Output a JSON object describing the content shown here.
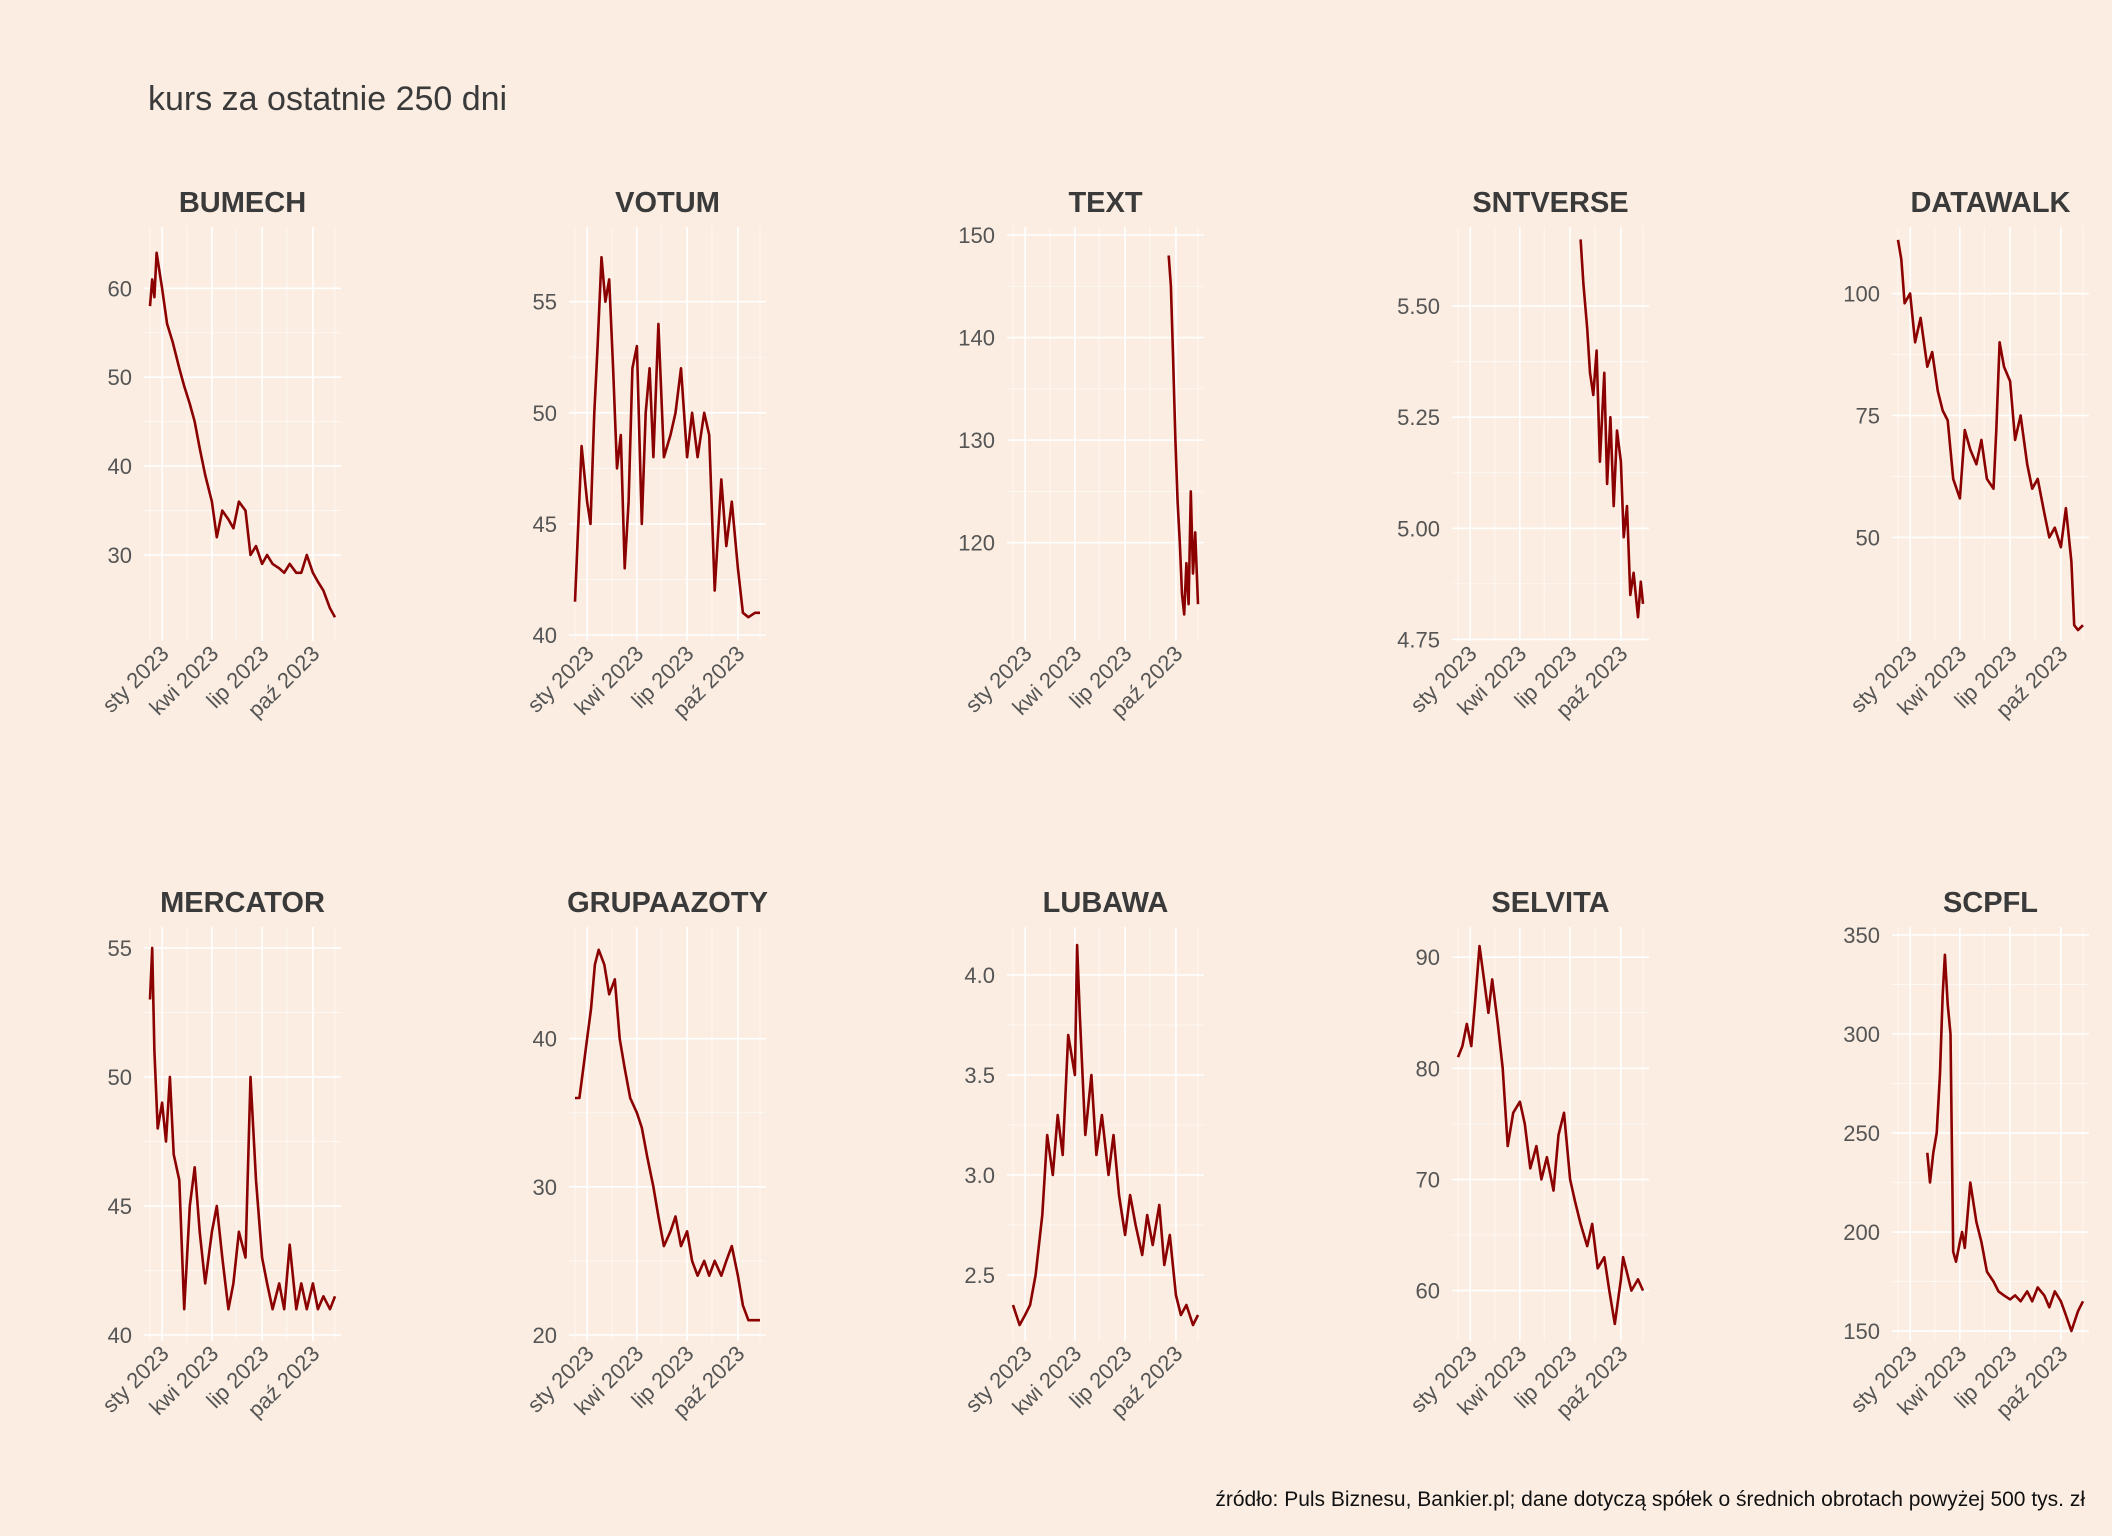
{
  "title": "kurs za ostatnie 250 dni",
  "caption": "źródło: Puls Biznesu, Bankier.pl; dane dotyczą spółek o średnich obrotach powyżej 500 tys. zł",
  "colors": {
    "background": "#fbede1",
    "line": "#8b0000",
    "grid": "#ffffff"
  },
  "chart_data": [
    {
      "type": "line",
      "title": "BUMECH",
      "x_ticks": [
        "sty 2023",
        "kwi 2023",
        "lip 2023",
        "paź 2023"
      ],
      "y_ticks": [
        "30",
        "40",
        "50",
        "60"
      ],
      "y_tick_values": [
        30,
        40,
        50,
        60
      ],
      "ylim": [
        21,
        66
      ],
      "x": [
        "2022-12-10",
        "2022-12-14",
        "2022-12-18",
        "2022-12-22",
        "2023-01-01",
        "2023-01-10",
        "2023-01-20",
        "2023-02-01",
        "2023-02-10",
        "2023-02-20",
        "2023-03-01",
        "2023-03-10",
        "2023-03-20",
        "2023-04-01",
        "2023-04-10",
        "2023-04-20",
        "2023-05-01",
        "2023-05-10",
        "2023-05-20",
        "2023-06-01",
        "2023-06-10",
        "2023-06-20",
        "2023-07-01",
        "2023-07-10",
        "2023-07-20",
        "2023-08-01",
        "2023-08-10",
        "2023-08-20",
        "2023-09-01",
        "2023-09-10",
        "2023-09-20",
        "2023-10-01",
        "2023-10-10",
        "2023-10-20",
        "2023-11-01",
        "2023-11-10"
      ],
      "y": [
        58,
        61,
        59,
        64,
        60,
        56,
        54,
        51,
        49,
        47,
        45,
        42,
        39,
        36,
        32,
        35,
        34,
        33,
        36,
        35,
        30,
        31,
        29,
        30,
        29,
        28.5,
        28,
        29,
        28,
        28,
        30,
        28,
        27,
        26,
        24,
        23
      ]
    },
    {
      "type": "line",
      "title": "VOTUM",
      "x_ticks": [
        "sty 2023",
        "kwi 2023",
        "lip 2023",
        "paź 2023"
      ],
      "y_ticks": [
        "40",
        "45",
        "50",
        "55"
      ],
      "y_tick_values": [
        40,
        45,
        50,
        55
      ],
      "ylim": [
        40,
        58
      ],
      "x": [
        "2022-12-10",
        "2022-12-16",
        "2022-12-22",
        "2023-01-01",
        "2023-01-07",
        "2023-01-14",
        "2023-01-20",
        "2023-01-27",
        "2023-02-03",
        "2023-02-10",
        "2023-02-17",
        "2023-02-24",
        "2023-03-03",
        "2023-03-10",
        "2023-03-17",
        "2023-03-24",
        "2023-04-01",
        "2023-04-10",
        "2023-04-17",
        "2023-04-24",
        "2023-05-01",
        "2023-05-10",
        "2023-05-20",
        "2023-06-01",
        "2023-06-10",
        "2023-06-20",
        "2023-07-01",
        "2023-07-10",
        "2023-07-20",
        "2023-08-01",
        "2023-08-10",
        "2023-08-20",
        "2023-09-01",
        "2023-09-10",
        "2023-09-20",
        "2023-10-01",
        "2023-10-10",
        "2023-10-20",
        "2023-11-01",
        "2023-11-10"
      ],
      "y": [
        41.5,
        45,
        48.5,
        46,
        45,
        50,
        53,
        57,
        55,
        56,
        52,
        47.5,
        49,
        43,
        46,
        52,
        53,
        45,
        50,
        52,
        48,
        54,
        48,
        49,
        50,
        52,
        48,
        50,
        48,
        50,
        49,
        42,
        47,
        44,
        46,
        43,
        41,
        40.8,
        41,
        41
      ]
    },
    {
      "type": "line",
      "title": "TEXT",
      "x_ticks": [
        "sty 2023",
        "kwi 2023",
        "lip 2023",
        "paź 2023"
      ],
      "y_ticks": [
        "120",
        "130",
        "140",
        "150"
      ],
      "y_tick_values": [
        120,
        130,
        140,
        150
      ],
      "ylim": [
        111,
        150
      ],
      "x": [
        "2023-09-18",
        "2023-09-22",
        "2023-09-26",
        "2023-09-30",
        "2023-10-04",
        "2023-10-08",
        "2023-10-12",
        "2023-10-16",
        "2023-10-20",
        "2023-10-24",
        "2023-10-28",
        "2023-11-01",
        "2023-11-05",
        "2023-11-10"
      ],
      "y": [
        148,
        145,
        138,
        130,
        124,
        120,
        115,
        113,
        118,
        114,
        125,
        117,
        121,
        114
      ]
    },
    {
      "type": "line",
      "title": "SNTVERSE",
      "x_ticks": [
        "sty 2023",
        "kwi 2023",
        "lip 2023",
        "paź 2023"
      ],
      "y_ticks": [
        "4.75",
        "5.00",
        "5.25",
        "5.50"
      ],
      "y_tick_values": [
        4.75,
        5.0,
        5.25,
        5.5
      ],
      "ylim": [
        4.76,
        5.66
      ],
      "x": [
        "2023-07-20",
        "2023-07-25",
        "2023-08-01",
        "2023-08-06",
        "2023-08-12",
        "2023-08-18",
        "2023-08-24",
        "2023-09-01",
        "2023-09-06",
        "2023-09-12",
        "2023-09-18",
        "2023-09-24",
        "2023-10-01",
        "2023-10-06",
        "2023-10-12",
        "2023-10-18",
        "2023-10-24",
        "2023-11-01",
        "2023-11-06",
        "2023-11-10"
      ],
      "y": [
        5.65,
        5.55,
        5.45,
        5.35,
        5.3,
        5.4,
        5.15,
        5.35,
        5.1,
        5.25,
        5.05,
        5.22,
        5.15,
        4.98,
        5.05,
        4.85,
        4.9,
        4.8,
        4.88,
        4.83
      ]
    },
    {
      "type": "line",
      "title": "DATAWALK",
      "x_ticks": [
        "sty 2023",
        "kwi 2023",
        "lip 2023",
        "paź 2023"
      ],
      "y_ticks": [
        "50",
        "75",
        "100"
      ],
      "y_tick_values": [
        50,
        75,
        100
      ],
      "ylim": [
        30,
        112
      ],
      "x": [
        "2022-12-10",
        "2022-12-16",
        "2022-12-22",
        "2023-01-01",
        "2023-01-10",
        "2023-01-20",
        "2023-02-01",
        "2023-02-10",
        "2023-02-20",
        "2023-03-01",
        "2023-03-10",
        "2023-03-20",
        "2023-04-01",
        "2023-04-10",
        "2023-04-20",
        "2023-05-01",
        "2023-05-10",
        "2023-05-20",
        "2023-06-01",
        "2023-06-06",
        "2023-06-12",
        "2023-06-20",
        "2023-07-01",
        "2023-07-10",
        "2023-07-20",
        "2023-08-01",
        "2023-08-10",
        "2023-08-20",
        "2023-09-01",
        "2023-09-10",
        "2023-09-20",
        "2023-10-01",
        "2023-10-10",
        "2023-10-20",
        "2023-10-25",
        "2023-11-01",
        "2023-11-10"
      ],
      "y": [
        111,
        107,
        98,
        100,
        90,
        95,
        85,
        88,
        80,
        76,
        74,
        62,
        58,
        72,
        68,
        65,
        70,
        62,
        60,
        72,
        90,
        85,
        82,
        70,
        75,
        65,
        60,
        62,
        55,
        50,
        52,
        48,
        56,
        45,
        32,
        31,
        32
      ]
    },
    {
      "type": "line",
      "title": "MERCATOR",
      "x_ticks": [
        "sty 2023",
        "kwi 2023",
        "lip 2023",
        "paź 2023"
      ],
      "y_ticks": [
        "40",
        "45",
        "50",
        "55"
      ],
      "y_tick_values": [
        40,
        45,
        50,
        55
      ],
      "ylim": [
        40,
        55.5
      ],
      "x": [
        "2022-12-10",
        "2022-12-14",
        "2022-12-18",
        "2022-12-24",
        "2023-01-01",
        "2023-01-08",
        "2023-01-15",
        "2023-01-22",
        "2023-02-01",
        "2023-02-10",
        "2023-02-20",
        "2023-03-01",
        "2023-03-10",
        "2023-03-20",
        "2023-04-01",
        "2023-04-10",
        "2023-04-20",
        "2023-05-01",
        "2023-05-10",
        "2023-05-20",
        "2023-06-01",
        "2023-06-10",
        "2023-06-20",
        "2023-07-01",
        "2023-07-10",
        "2023-07-20",
        "2023-08-01",
        "2023-08-10",
        "2023-08-20",
        "2023-09-01",
        "2023-09-10",
        "2023-09-20",
        "2023-10-01",
        "2023-10-10",
        "2023-10-20",
        "2023-11-01",
        "2023-11-10"
      ],
      "y": [
        53,
        55,
        51,
        48,
        49,
        47.5,
        50,
        47,
        46,
        41,
        45,
        46.5,
        44,
        42,
        44,
        45,
        43,
        41,
        42,
        44,
        43,
        50,
        46,
        43,
        42,
        41,
        42,
        41,
        43.5,
        41,
        42,
        41,
        42,
        41,
        41.5,
        41,
        41.5
      ]
    },
    {
      "type": "line",
      "title": "GRUPAAZOTY",
      "x_ticks": [
        "sty 2023",
        "kwi 2023",
        "lip 2023",
        "paź 2023"
      ],
      "y_ticks": [
        "20",
        "30",
        "40"
      ],
      "y_tick_values": [
        20,
        30,
        40
      ],
      "ylim": [
        20,
        47
      ],
      "x": [
        "2022-12-10",
        "2022-12-18",
        "2022-12-25",
        "2023-01-01",
        "2023-01-08",
        "2023-01-15",
        "2023-01-22",
        "2023-02-01",
        "2023-02-10",
        "2023-02-20",
        "2023-03-01",
        "2023-03-10",
        "2023-03-20",
        "2023-04-01",
        "2023-04-10",
        "2023-04-20",
        "2023-05-01",
        "2023-05-10",
        "2023-05-20",
        "2023-06-01",
        "2023-06-10",
        "2023-06-20",
        "2023-07-01",
        "2023-07-10",
        "2023-07-20",
        "2023-08-01",
        "2023-08-10",
        "2023-08-20",
        "2023-09-01",
        "2023-09-10",
        "2023-09-20",
        "2023-10-01",
        "2023-10-10",
        "2023-10-20",
        "2023-11-01",
        "2023-11-10"
      ],
      "y": [
        36,
        36,
        38,
        40,
        42,
        45,
        46,
        45,
        43,
        44,
        40,
        38,
        36,
        35,
        34,
        32,
        30,
        28,
        26,
        27,
        28,
        26,
        27,
        25,
        24,
        25,
        24,
        25,
        24,
        25,
        26,
        24,
        22,
        21,
        21,
        21
      ]
    },
    {
      "type": "line",
      "title": "LUBAWA",
      "x_ticks": [
        "sty 2023",
        "kwi 2023",
        "lip 2023",
        "paź 2023"
      ],
      "y_ticks": [
        "2.5",
        "3.0",
        "3.5",
        "4.0"
      ],
      "y_tick_values": [
        2.5,
        3.0,
        3.5,
        4.0
      ],
      "ylim": [
        2.2,
        4.2
      ],
      "x": [
        "2022-12-10",
        "2022-12-16",
        "2022-12-22",
        "2023-01-01",
        "2023-01-10",
        "2023-01-20",
        "2023-02-01",
        "2023-02-10",
        "2023-02-20",
        "2023-03-01",
        "2023-03-10",
        "2023-03-20",
        "2023-04-01",
        "2023-04-05",
        "2023-04-10",
        "2023-04-20",
        "2023-05-01",
        "2023-05-10",
        "2023-05-20",
        "2023-06-01",
        "2023-06-10",
        "2023-06-20",
        "2023-07-01",
        "2023-07-10",
        "2023-07-20",
        "2023-08-01",
        "2023-08-10",
        "2023-08-20",
        "2023-09-01",
        "2023-09-10",
        "2023-09-20",
        "2023-10-01",
        "2023-10-10",
        "2023-10-20",
        "2023-11-01",
        "2023-11-10"
      ],
      "y": [
        2.35,
        2.3,
        2.25,
        2.3,
        2.35,
        2.5,
        2.8,
        3.2,
        3.0,
        3.3,
        3.1,
        3.7,
        3.5,
        4.15,
        3.8,
        3.2,
        3.5,
        3.1,
        3.3,
        3.0,
        3.2,
        2.9,
        2.7,
        2.9,
        2.75,
        2.6,
        2.8,
        2.65,
        2.85,
        2.55,
        2.7,
        2.4,
        2.3,
        2.35,
        2.25,
        2.3
      ]
    },
    {
      "type": "line",
      "title": "SELVITA",
      "x_ticks": [
        "sty 2023",
        "kwi 2023",
        "lip 2023",
        "paź 2023"
      ],
      "y_ticks": [
        "60",
        "70",
        "80",
        "90"
      ],
      "y_tick_values": [
        60,
        70,
        80,
        90
      ],
      "ylim": [
        56,
        92
      ],
      "x": [
        "2022-12-10",
        "2022-12-18",
        "2022-12-26",
        "2023-01-03",
        "2023-01-10",
        "2023-01-18",
        "2023-01-26",
        "2023-02-03",
        "2023-02-10",
        "2023-02-20",
        "2023-03-01",
        "2023-03-10",
        "2023-03-20",
        "2023-04-01",
        "2023-04-10",
        "2023-04-20",
        "2023-05-01",
        "2023-05-10",
        "2023-05-20",
        "2023-06-01",
        "2023-06-10",
        "2023-06-20",
        "2023-07-01",
        "2023-07-10",
        "2023-07-20",
        "2023-08-01",
        "2023-08-10",
        "2023-08-20",
        "2023-09-01",
        "2023-09-10",
        "2023-09-20",
        "2023-10-01",
        "2023-10-05",
        "2023-10-10",
        "2023-10-20",
        "2023-11-01",
        "2023-11-10"
      ],
      "y": [
        81,
        82,
        84,
        82,
        86,
        91,
        88,
        85,
        88,
        84,
        80,
        73,
        76,
        77,
        75,
        71,
        73,
        70,
        72,
        69,
        74,
        76,
        70,
        68,
        66,
        64,
        66,
        62,
        63,
        60,
        57,
        61,
        63,
        62,
        60,
        61,
        60
      ]
    },
    {
      "type": "line",
      "title": "SCPFL",
      "x_ticks": [
        "sty 2023",
        "kwi 2023",
        "lip 2023",
        "paź 2023"
      ],
      "y_ticks": [
        "150",
        "200",
        "250",
        "300",
        "350"
      ],
      "y_tick_values": [
        150,
        200,
        250,
        300,
        350
      ],
      "ylim": [
        148,
        350
      ],
      "x": [
        "2023-02-01",
        "2023-02-06",
        "2023-02-12",
        "2023-02-18",
        "2023-02-24",
        "2023-03-01",
        "2023-03-05",
        "2023-03-10",
        "2023-03-15",
        "2023-03-20",
        "2023-03-25",
        "2023-04-01",
        "2023-04-05",
        "2023-04-10",
        "2023-04-20",
        "2023-05-01",
        "2023-05-10",
        "2023-05-20",
        "2023-06-01",
        "2023-06-10",
        "2023-06-20",
        "2023-07-01",
        "2023-07-10",
        "2023-07-20",
        "2023-08-01",
        "2023-08-10",
        "2023-08-20",
        "2023-09-01",
        "2023-09-10",
        "2023-09-20",
        "2023-10-01",
        "2023-10-10",
        "2023-10-20",
        "2023-11-01",
        "2023-11-10"
      ],
      "y": [
        240,
        225,
        240,
        250,
        280,
        320,
        340,
        315,
        300,
        190,
        185,
        195,
        200,
        192,
        225,
        205,
        195,
        180,
        175,
        170,
        168,
        166,
        168,
        165,
        170,
        165,
        172,
        168,
        162,
        170,
        165,
        158,
        150,
        160,
        165
      ]
    }
  ]
}
